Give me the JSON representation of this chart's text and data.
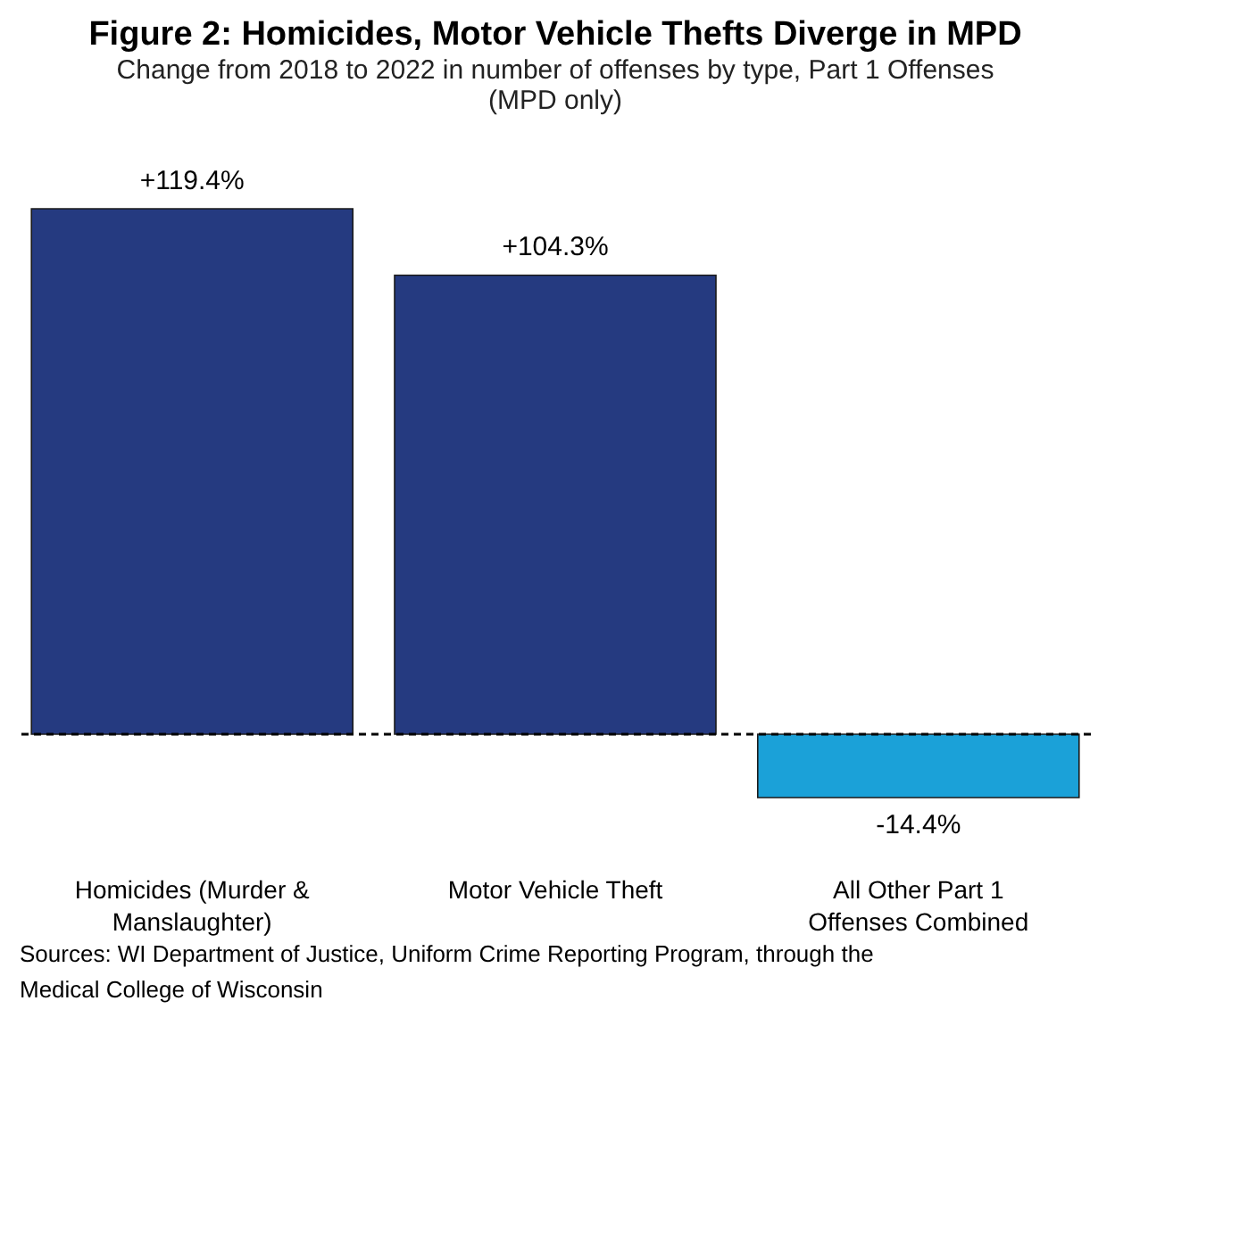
{
  "chart_data": {
    "type": "bar",
    "title": "Figure 2: Homicides, Motor Vehicle Thefts Diverge in MPD",
    "subtitle": "Change from 2018 to 2022 in number of offenses by type, Part 1 Offenses (MPD only)",
    "categories": [
      "Homicides (Murder & Manslaughter)",
      "Motor Vehicle Theft",
      "All Other Part 1 Offenses Combined"
    ],
    "values": [
      119.4,
      104.3,
      -14.4
    ],
    "value_labels": [
      "+119.4%",
      "+104.3%",
      "-14.4%"
    ],
    "colors": [
      "#253a80",
      "#253a80",
      "#1ba1d8"
    ],
    "ref_lines": [
      {
        "axis": "y",
        "value": 0,
        "color": "#000000",
        "line_style": "dashed"
      }
    ],
    "grid": false,
    "annotations": [
      "Sources:  WI Department of Justice, Uniform Crime Reporting Program, through the Medical College of Wisconsin"
    ]
  }
}
